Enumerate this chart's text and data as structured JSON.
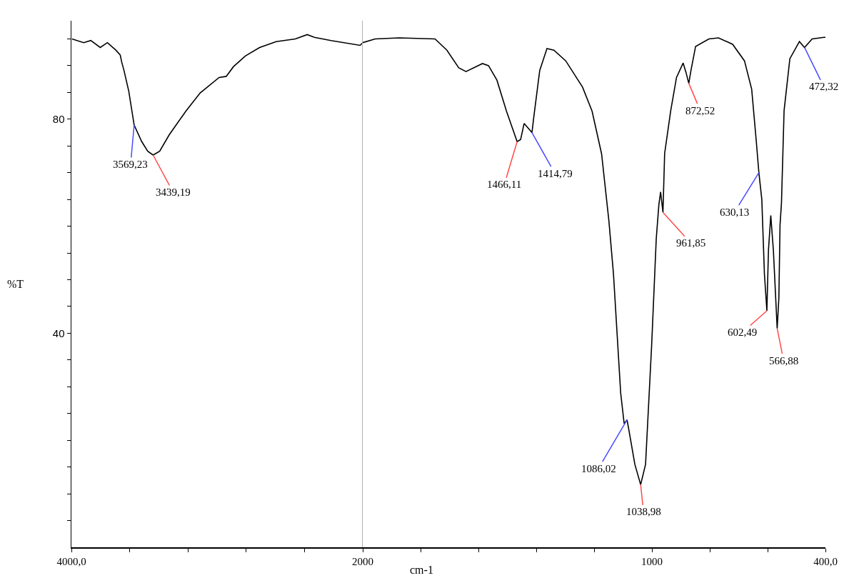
{
  "chart_data": [
    {
      "type": "line",
      "ylabel": "%T",
      "x": [
        3996,
        3916,
        3867,
        3802,
        3753,
        3695,
        3665,
        3655,
        3639,
        3606,
        3569.23,
        3517,
        3476,
        3439.19,
        3394,
        3328,
        3214,
        3116,
        2986,
        2937,
        2888,
        2806,
        2708,
        2594,
        2463,
        2381,
        2332,
        2218,
        2018,
        2000
      ],
      "series": [
        {
          "color": "#000000",
          "values": [
            95.0,
            94.3,
            94.7,
            93.4,
            94.3,
            92.9,
            92.0,
            90.7,
            89.1,
            85.2,
            78.9,
            75.8,
            74.0,
            73.3,
            74.0,
            77.1,
            81.5,
            84.9,
            87.8,
            88.0,
            89.8,
            91.8,
            93.4,
            94.5,
            95.0,
            95.8,
            95.3,
            94.7,
            93.8,
            94.3
          ]
        }
      ],
      "xlim": [
        4000,
        2000
      ],
      "xticks": [
        {
          "value": 4000,
          "label": "4000,0"
        },
        {
          "value": 3600,
          "label": null
        },
        {
          "value": 3200,
          "label": null
        },
        {
          "value": 2800,
          "label": null
        },
        {
          "value": 2400,
          "label": null
        },
        2000
      ],
      "grid": false,
      "ylim": [
        0,
        98.4
      ],
      "yticks": [
        {
          "value": 5,
          "label": null
        },
        {
          "value": 10,
          "label": null
        },
        {
          "value": 15,
          "label": null
        },
        {
          "value": 20,
          "label": null
        },
        {
          "value": 25,
          "label": null
        },
        {
          "value": 30,
          "label": null
        },
        {
          "value": 35,
          "label": null
        },
        40,
        {
          "value": 45,
          "label": null
        },
        {
          "value": 50,
          "label": null
        },
        {
          "value": 55,
          "label": null
        },
        {
          "value": 60,
          "label": null
        },
        {
          "value": 65,
          "label": null
        },
        {
          "value": 70,
          "label": null
        },
        {
          "value": 75,
          "label": null
        },
        80,
        {
          "value": 85,
          "label": null
        },
        {
          "value": 90,
          "label": null
        },
        {
          "value": 95,
          "label": null
        }
      ],
      "annotations": [
        {
          "text": "3569,23",
          "x": 3569.23,
          "y": 78.9
        },
        {
          "text": "3439,19",
          "x": 3439.19,
          "y": 73.3
        }
      ]
    },
    {
      "type": "line",
      "xlabel": "cm-1",
      "x": [
        2000,
        1957,
        1874,
        1750,
        1709,
        1668,
        1643,
        1586,
        1565,
        1536,
        1503,
        1466.11,
        1454,
        1442,
        1414.79,
        1409,
        1388,
        1363,
        1339,
        1298,
        1240,
        1207,
        1174,
        1149,
        1133,
        1108,
        1096,
        1086.02,
        1080,
        1059,
        1038.98,
        1022,
        1001,
        985,
        976,
        970,
        961.85,
        956,
        935,
        915,
        892,
        882,
        872.52,
        865,
        849,
        803,
        770,
        721,
        680,
        655,
        639,
        630.13,
        620,
        611,
        602.49,
        597,
        589,
        580,
        566.88,
        561,
        557,
        552,
        543,
        523,
        490,
        472.32,
        446,
        405,
        400
      ],
      "series": [
        {
          "color": "#000000",
          "values": [
            94.3,
            95.0,
            95.2,
            95.0,
            92.9,
            89.6,
            88.9,
            90.4,
            90.0,
            87.3,
            81.5,
            75.8,
            76.2,
            79.2,
            77.5,
            80.2,
            89.1,
            93.2,
            92.9,
            90.9,
            86.0,
            81.5,
            73.5,
            61.1,
            51.1,
            28.8,
            23.1,
            23.8,
            22.0,
            15.5,
            11.7,
            15.5,
            37.7,
            57.7,
            64.0,
            66.4,
            62.6,
            73.6,
            81.6,
            87.8,
            90.5,
            88.7,
            86.7,
            89.1,
            93.6,
            95.0,
            95.2,
            94.0,
            90.9,
            85.6,
            75.8,
            70.0,
            65.0,
            51.1,
            44.2,
            55.5,
            62.0,
            55.5,
            40.9,
            46.6,
            60.2,
            64.4,
            81.6,
            91.3,
            94.5,
            93.4,
            95.0,
            95.3,
            95.3
          ]
        }
      ],
      "xlim": [
        2000,
        400
      ],
      "xticks": [
        {
          "value": 2000,
          "label": null
        },
        {
          "value": 1800,
          "label": null
        },
        {
          "value": 1600,
          "label": null
        },
        {
          "value": 1400,
          "label": null
        },
        {
          "value": 1200,
          "label": null
        },
        1000,
        {
          "value": 800,
          "label": null
        },
        {
          "value": 600,
          "label": null
        },
        {
          "value": 400,
          "label": "400,0"
        }
      ],
      "ylim": [
        0,
        98.4
      ],
      "tick_labels": "x",
      "grid": false,
      "annotations": [
        {
          "text": "1466,11",
          "x": 1466.11,
          "y": 75.8
        },
        {
          "text": "1414,79",
          "x": 1414.79,
          "y": 77.5
        },
        {
          "text": "1086,02",
          "x": 1086.02,
          "y": 23.8
        },
        {
          "text": "1038,98",
          "x": 1038.98,
          "y": 11.7
        },
        {
          "text": "961,85",
          "x": 961.85,
          "y": 62.6
        },
        {
          "text": "872,52",
          "x": 872.52,
          "y": 86.7
        },
        {
          "text": "630,13",
          "x": 630.13,
          "y": 70.0
        },
        {
          "text": "602,49",
          "x": 602.49,
          "y": 44.2
        },
        {
          "text": "566,88",
          "x": 566.88,
          "y": 40.9
        },
        {
          "text": "472,32",
          "x": 472.32,
          "y": 93.4
        }
      ]
    }
  ]
}
